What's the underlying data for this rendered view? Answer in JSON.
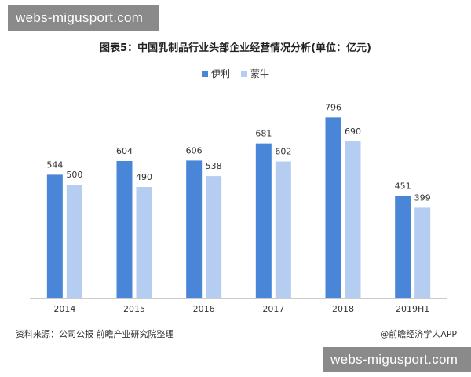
{
  "watermark_top": "webs-migusport.com",
  "watermark_bottom": "webs-migusport.com",
  "chart_data": {
    "type": "bar",
    "title": "图表5：中国乳制品行业头部企业经营情况分析(单位：亿元)",
    "categories": [
      "2014",
      "2015",
      "2016",
      "2017",
      "2018",
      "2019H1"
    ],
    "series": [
      {
        "name": "伊利",
        "values": [
          544,
          604,
          606,
          681,
          796,
          451
        ],
        "color": "#4a86d8"
      },
      {
        "name": "蒙牛",
        "values": [
          500,
          490,
          538,
          602,
          690,
          399
        ],
        "color": "#b4cdf0"
      }
    ],
    "ylim": [
      0,
      880
    ],
    "grid": false,
    "legend": "top-center",
    "xlabel": "",
    "ylabel": ""
  },
  "footer": {
    "source": "资料来源：公司公报 前瞻产业研究院整理",
    "credit": "@前瞻经济学人APP"
  }
}
